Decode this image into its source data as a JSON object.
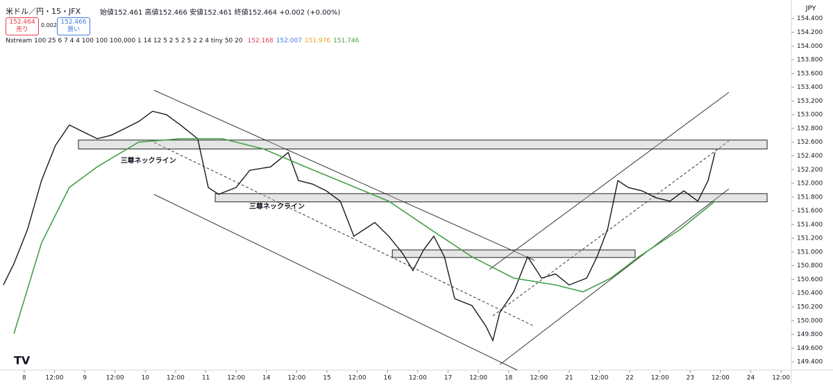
{
  "header": {
    "symbol": "米ドル／円・15・JFX",
    "ohlc": "始値152.461 高値152.466 安値152.461 終値152.464 +0.002 (+0.00%)",
    "sell_price": "152.464",
    "sell_label": "売り",
    "spread": "0.002",
    "buy_price": "152.466",
    "buy_label": "買い",
    "indicator": "Nstream 100 25 6 7 4 4 100 100 100,000 1 14 12 5 2 5 2 5 2 2 4 tiny 50 20",
    "indicator_values": [
      {
        "text": "152.168",
        "color": "#e8394b"
      },
      {
        "text": "152.007",
        "color": "#3f7be0"
      },
      {
        "text": "151.976",
        "color": "#f0a020"
      },
      {
        "text": "151.746",
        "color": "#43a047"
      }
    ],
    "currency": "JPY"
  },
  "chart_data": {
    "type": "line",
    "annotations": [
      {
        "text": "三尊ネックライン",
        "x": 4.1,
        "y": 152.33
      },
      {
        "text": "三尊ネックライン",
        "x": 8.35,
        "y": 151.66
      }
    ],
    "zones": [
      {
        "x": [
          1.79,
          24.54
        ],
        "y": [
          152.5,
          152.63
        ]
      },
      {
        "x": [
          6.31,
          24.54
        ],
        "y": [
          151.73,
          151.85
        ]
      },
      {
        "x": [
          12.16,
          20.18
        ],
        "y": [
          150.92,
          151.03
        ]
      }
    ],
    "series": [
      {
        "name": "price",
        "color": "#131722",
        "x": [
          -0.69,
          -0.34,
          0.11,
          0.57,
          1.03,
          1.49,
          1.95,
          2.41,
          2.87,
          3.33,
          3.78,
          4.24,
          4.7,
          5.16,
          5.73,
          6.08,
          6.42,
          7.0,
          7.45,
          8.14,
          8.72,
          9.06,
          9.52,
          9.98,
          10.44,
          10.89,
          11.58,
          12.04,
          12.5,
          12.84,
          13.19,
          13.53,
          13.88,
          14.22,
          14.79,
          15.25,
          15.48,
          15.71,
          16.17,
          16.63,
          17.09,
          17.55,
          18.0,
          18.58,
          18.92,
          19.27,
          19.61,
          19.95,
          20.41,
          20.87,
          21.33,
          21.79,
          22.25,
          22.59,
          22.82
        ],
        "values": [
          150.52,
          150.83,
          151.33,
          152.04,
          152.55,
          152.85,
          152.75,
          152.65,
          152.7,
          152.8,
          152.9,
          153.05,
          153.0,
          152.85,
          152.65,
          151.94,
          151.84,
          151.94,
          152.19,
          152.24,
          152.45,
          152.04,
          151.99,
          151.89,
          151.74,
          151.23,
          151.43,
          151.23,
          150.98,
          150.73,
          151.03,
          151.23,
          150.93,
          150.32,
          150.22,
          149.92,
          149.71,
          150.12,
          150.42,
          150.93,
          150.62,
          150.68,
          150.52,
          150.62,
          150.93,
          151.33,
          152.04,
          151.94,
          151.89,
          151.79,
          151.74,
          151.89,
          151.74,
          152.04,
          152.45
        ]
      },
      {
        "name": "MA",
        "color": "#43a047",
        "x": [
          -0.34,
          0.57,
          1.49,
          2.41,
          3.78,
          5.16,
          6.54,
          7.91,
          9.29,
          10.67,
          12.04,
          13.42,
          14.79,
          16.17,
          17.55,
          18.46,
          19.38,
          20.3,
          21.67,
          22.82
        ],
        "values": [
          149.81,
          151.13,
          151.94,
          152.24,
          152.6,
          152.65,
          152.65,
          152.5,
          152.24,
          151.99,
          151.74,
          151.33,
          150.93,
          150.62,
          150.52,
          150.42,
          150.62,
          150.93,
          151.33,
          151.74
        ]
      }
    ],
    "xlim": [
      -0.8,
      25.34
    ],
    "ylim": [
      149.28,
      154.67
    ],
    "xticks": [
      {
        "value": 0,
        "label": "8"
      },
      {
        "value": 1,
        "label": "12:00"
      },
      {
        "value": 2,
        "label": "9"
      },
      {
        "value": 3,
        "label": "12:00"
      },
      {
        "value": 4,
        "label": "10"
      },
      {
        "value": 5,
        "label": "12:00"
      },
      {
        "value": 6,
        "label": "11"
      },
      {
        "value": 7,
        "label": "12:00"
      },
      {
        "value": 8,
        "label": "14"
      },
      {
        "value": 9,
        "label": "12:00"
      },
      {
        "value": 10,
        "label": "15"
      },
      {
        "value": 11,
        "label": "12:00"
      },
      {
        "value": 12,
        "label": "16"
      },
      {
        "value": 13,
        "label": "12:00"
      },
      {
        "value": 14,
        "label": "17"
      },
      {
        "value": 15,
        "label": "12:00"
      },
      {
        "value": 16,
        "label": "18"
      },
      {
        "value": 17,
        "label": "12:00"
      },
      {
        "value": 18,
        "label": "21"
      },
      {
        "value": 19,
        "label": "12:00"
      },
      {
        "value": 20,
        "label": "22"
      },
      {
        "value": 21,
        "label": "12:00"
      },
      {
        "value": 22,
        "label": "23"
      },
      {
        "value": 23,
        "label": "12:00"
      },
      {
        "value": 24,
        "label": "24"
      },
      {
        "value": 25,
        "label": "12:00"
      }
    ],
    "yticks": [
      {
        "value": 149.4,
        "label": "149.400"
      },
      {
        "value": 149.6,
        "label": "149.600"
      },
      {
        "value": 149.8,
        "label": "149.800"
      },
      {
        "value": 150,
        "label": "150.000"
      },
      {
        "value": 150.2,
        "label": "150.200"
      },
      {
        "value": 150.4,
        "label": "150.400"
      },
      {
        "value": 150.6,
        "label": "150.600"
      },
      {
        "value": 150.8,
        "label": "150.800"
      },
      {
        "value": 151,
        "label": "151.000"
      },
      {
        "value": 151.2,
        "label": "151.200"
      },
      {
        "value": 151.4,
        "label": "151.400"
      },
      {
        "value": 151.6,
        "label": "151.600"
      },
      {
        "value": 151.8,
        "label": "151.800"
      },
      {
        "value": 152,
        "label": "152.000"
      },
      {
        "value": 152.2,
        "label": "152.200"
      },
      {
        "value": 152.4,
        "label": "152.400"
      },
      {
        "value": 152.6,
        "label": "152.600"
      },
      {
        "value": 152.8,
        "label": "152.800"
      },
      {
        "value": 153,
        "label": "153.000"
      },
      {
        "value": 153.2,
        "label": "153.200"
      },
      {
        "value": 153.4,
        "label": "153.400"
      },
      {
        "value": 153.6,
        "label": "153.600"
      },
      {
        "value": 153.8,
        "label": "153.800"
      },
      {
        "value": 154,
        "label": "154.000"
      },
      {
        "value": 154.2,
        "label": "154.200"
      },
      {
        "value": 154.4,
        "label": "154.400"
      }
    ]
  }
}
